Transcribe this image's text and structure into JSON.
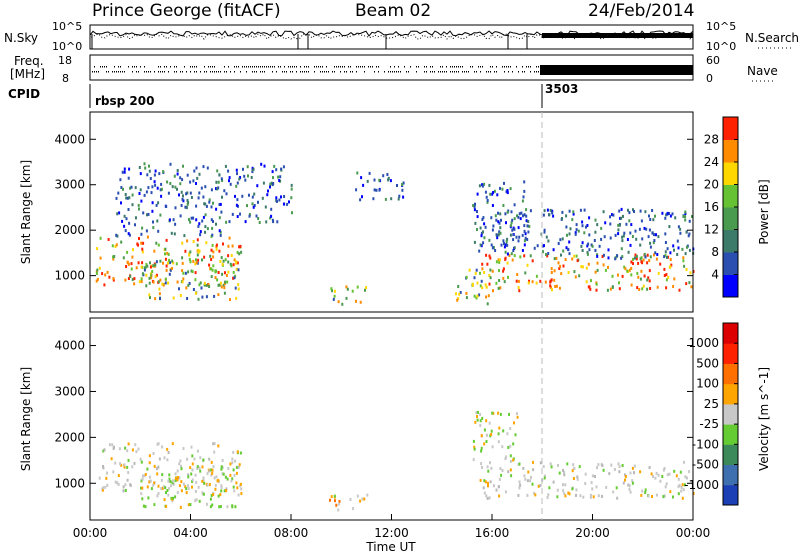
{
  "header": {
    "station": "Prince George (fitACF)",
    "beam": "Beam 02",
    "date": "24/Feb/2014"
  },
  "noise_panel": {
    "left_label": "N.Sky",
    "right_label": "N.Search",
    "tick_top": "10^5",
    "tick_bottom": "10^0",
    "right_tick_top": "10^5",
    "right_tick_bottom": "10^0"
  },
  "freq_panel": {
    "left_label_1": "Freq.",
    "left_label_2": "[MHz]",
    "right_label": "Nave",
    "left_ticks": [
      "18",
      "8"
    ],
    "right_ticks": [
      "60",
      "0"
    ]
  },
  "cpid": {
    "label": "CPID",
    "entries": [
      {
        "text": "rbsp 200",
        "time_hours": 0.0
      },
      {
        "text": "3503",
        "time_hours": 18.0
      }
    ]
  },
  "chart_data": [
    {
      "type": "heatmap",
      "id": "power",
      "ylabel": "Slant Range [km]",
      "yticks": [
        1000,
        2000,
        3000,
        4000
      ],
      "ylim": [
        200,
        4600
      ],
      "xlim": [
        0,
        24
      ],
      "colorbar": {
        "label": "Power [dB]",
        "ticks": [
          "4",
          "8",
          "12",
          "16",
          "20",
          "24",
          "28"
        ],
        "colors": [
          "#0000ff",
          "#2a4fb0",
          "#3c7a6a",
          "#4a9a50",
          "#66c233",
          "#ffd700",
          "#ff8c00",
          "#ff2200"
        ]
      },
      "scatter_regions": [
        {
          "t0": 0.2,
          "t1": 6.0,
          "r0": 800,
          "r1": 1900,
          "level": "high"
        },
        {
          "t0": 1.0,
          "t1": 5.5,
          "r0": 1900,
          "r1": 3500,
          "level": "low"
        },
        {
          "t0": 2.0,
          "t1": 6.0,
          "r0": 500,
          "r1": 1400,
          "level": "mid"
        },
        {
          "t0": 5.5,
          "t1": 8.0,
          "r0": 2200,
          "r1": 3500,
          "level": "low"
        },
        {
          "t0": 9.5,
          "t1": 11.0,
          "r0": 400,
          "r1": 800,
          "level": "mid"
        },
        {
          "t0": 10.5,
          "t1": 12.5,
          "r0": 2700,
          "r1": 3300,
          "level": "low"
        },
        {
          "t0": 14.5,
          "t1": 16.0,
          "r0": 400,
          "r1": 1200,
          "level": "mid"
        },
        {
          "t0": 15.5,
          "t1": 24.0,
          "r0": 700,
          "r1": 1500,
          "level": "high"
        },
        {
          "t0": 16.0,
          "t1": 24.0,
          "r0": 1400,
          "r1": 2500,
          "level": "low"
        },
        {
          "t0": 15.2,
          "t1": 17.5,
          "r0": 1500,
          "r1": 3100,
          "level": "low"
        }
      ]
    },
    {
      "type": "heatmap",
      "id": "velocity",
      "ylabel": "Slant Range [km]",
      "yticks": [
        1000,
        2000,
        3000,
        4000
      ],
      "ylim": [
        200,
        4600
      ],
      "xlim": [
        0,
        24
      ],
      "xticks": [
        "00:00",
        "04:00",
        "08:00",
        "12:00",
        "16:00",
        "20:00",
        "00:00"
      ],
      "xlabel": "Time UT",
      "colorbar": {
        "label": "Velocity [m s^-1]",
        "ticks": [
          "1000",
          "500",
          "100",
          "25",
          "-25",
          "-100",
          "-500",
          "-1000"
        ],
        "colors": [
          "#1b3fb5",
          "#3e6fae",
          "#3c8a5a",
          "#66cc33",
          "#c8c8c8",
          "#ffa500",
          "#ff7000",
          "#ff2200",
          "#dd0000"
        ]
      },
      "scatter_regions": [
        {
          "t0": 0.2,
          "t1": 6.0,
          "r0": 800,
          "r1": 1900,
          "level": "grey"
        },
        {
          "t0": 2.0,
          "t1": 6.0,
          "r0": 500,
          "r1": 1400,
          "level": "green"
        },
        {
          "t0": 9.5,
          "t1": 11.0,
          "r0": 400,
          "r1": 800,
          "level": "orange"
        },
        {
          "t0": 15.5,
          "t1": 24.0,
          "r0": 700,
          "r1": 1500,
          "level": "grey"
        },
        {
          "t0": 15.2,
          "t1": 17.0,
          "r0": 1500,
          "r1": 2600,
          "level": "green"
        }
      ]
    }
  ]
}
